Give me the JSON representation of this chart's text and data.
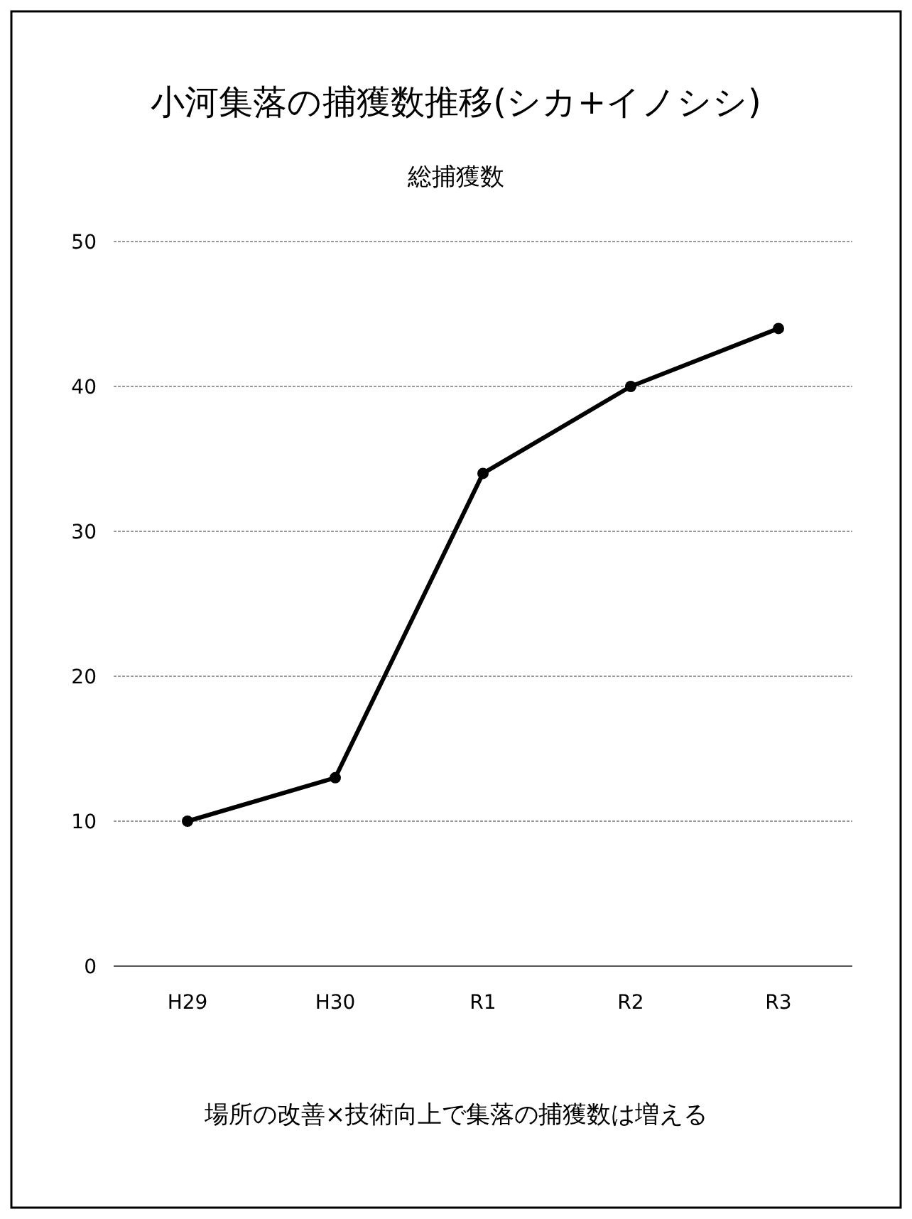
{
  "chart_data": {
    "type": "line",
    "title": "小河集落の捕獲数推移(シカ+イノシシ)",
    "subtitle": "総捕獲数",
    "categories": [
      "H29",
      "H30",
      "R1",
      "R2",
      "R3"
    ],
    "series": [
      {
        "color": "#000000",
        "values": [
          10,
          13,
          34,
          40,
          44
        ]
      }
    ],
    "ylim": [
      0,
      50
    ],
    "yticks": [
      0,
      10,
      20,
      30,
      40,
      50
    ],
    "grid": "y",
    "marker": "circle",
    "line_style": "solid",
    "annotations": [
      "場所の改善×技術向上で集落の捕獲数は増える"
    ]
  }
}
